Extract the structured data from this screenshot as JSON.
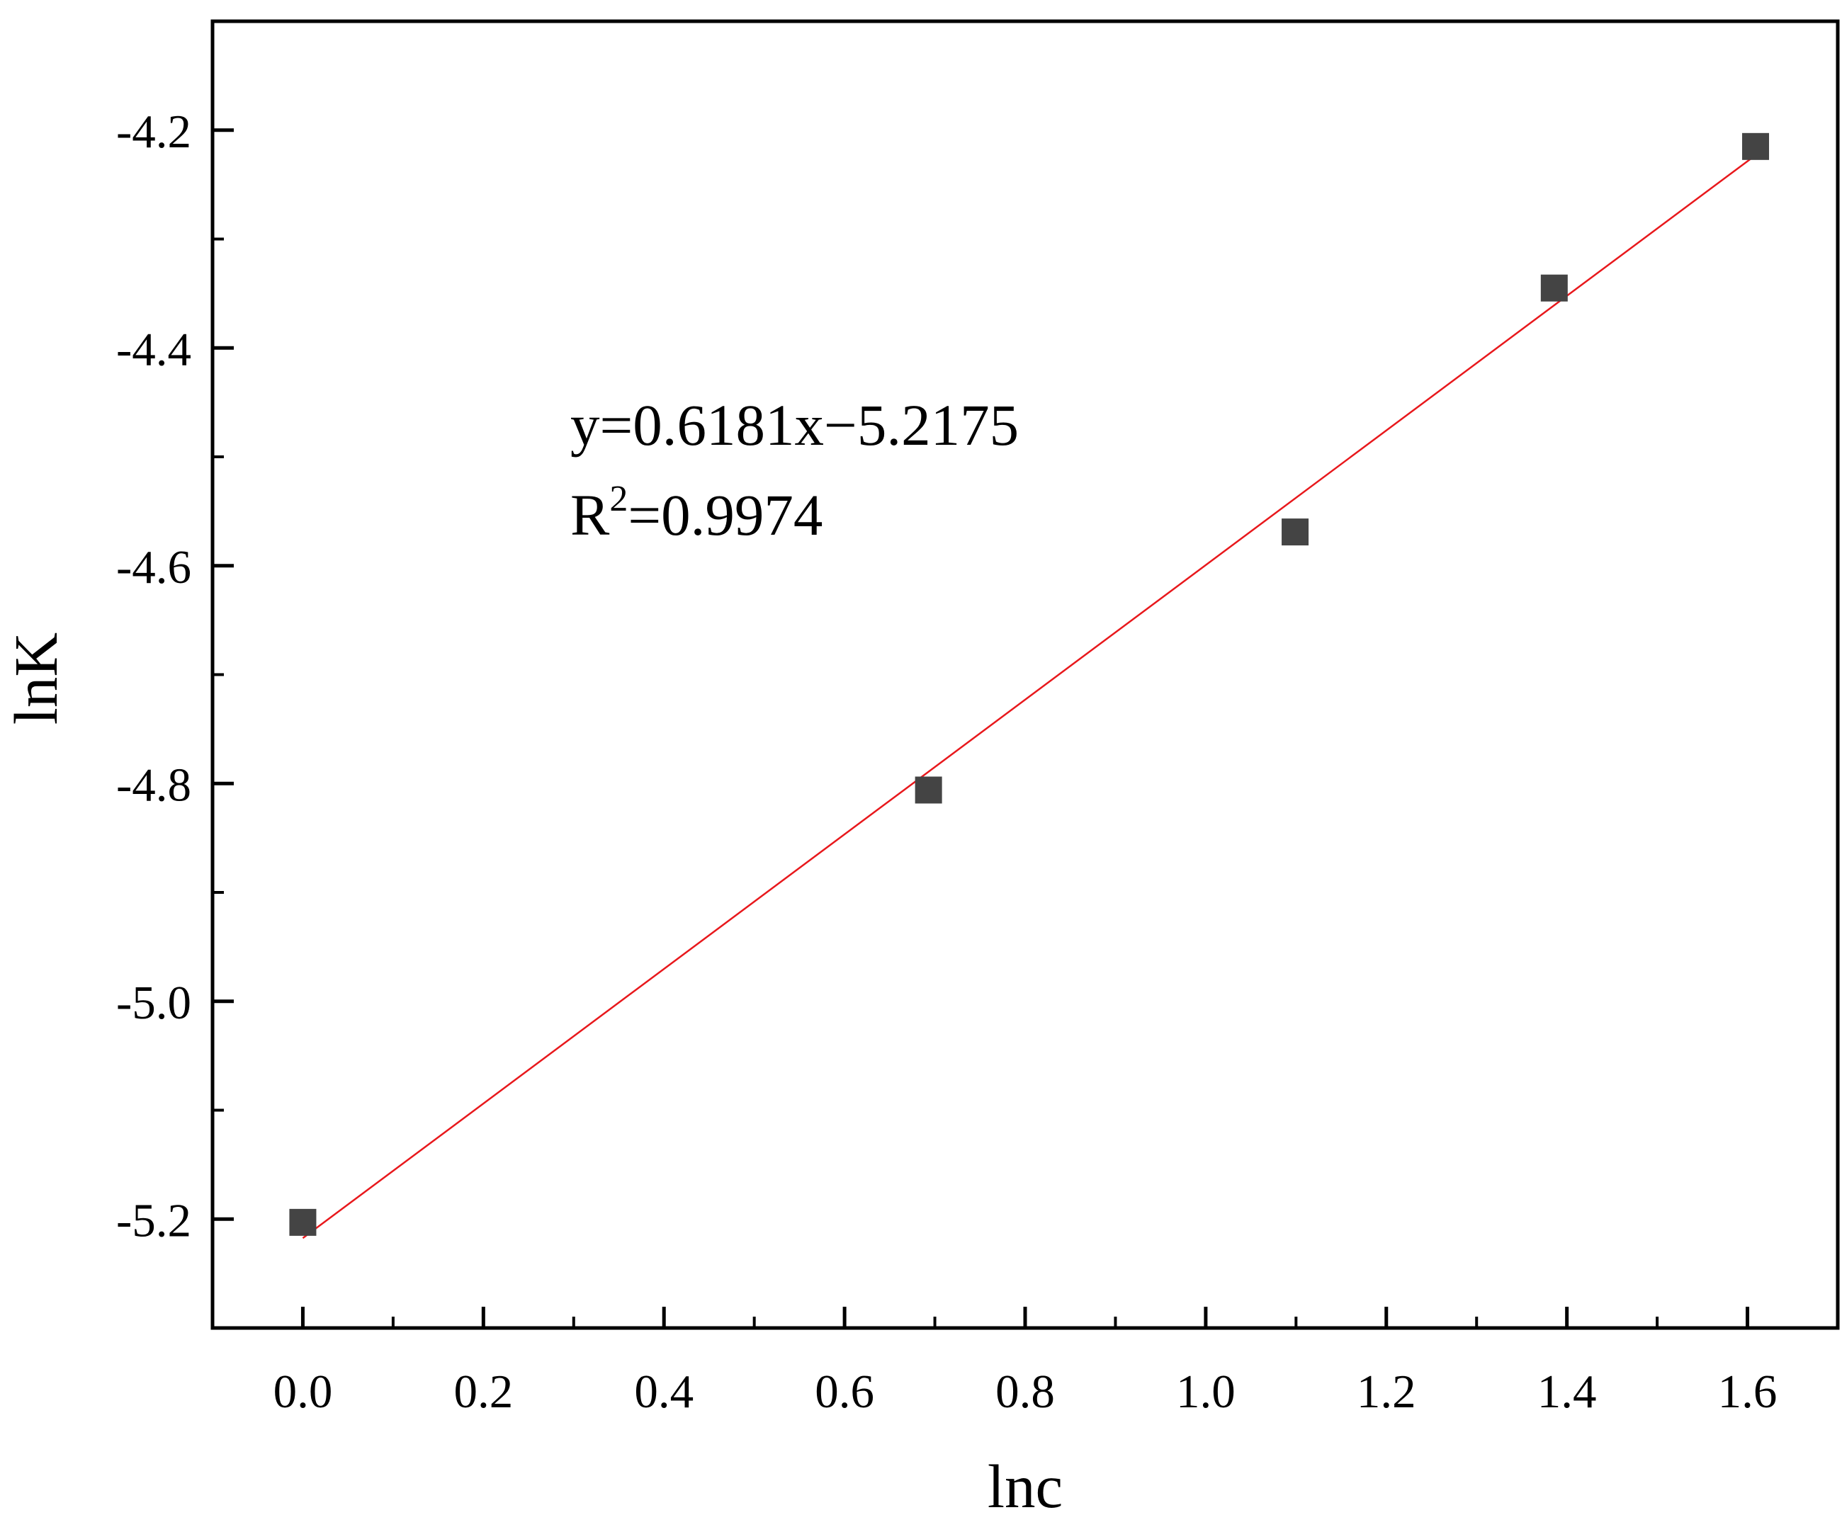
{
  "chart_data": {
    "type": "scatter",
    "title": "",
    "xlabel": "lnc",
    "ylabel": "lnK",
    "xlim": [
      -0.1,
      1.7
    ],
    "ylim": [
      -5.3,
      -4.1
    ],
    "x_major_ticks": [
      0.0,
      0.2,
      0.4,
      0.6,
      0.8,
      1.0,
      1.2,
      1.4,
      1.6
    ],
    "x_tick_labels": [
      "0.0",
      "0.2",
      "0.4",
      "0.6",
      "0.8",
      "1.0",
      "1.2",
      "1.4",
      "1.6"
    ],
    "x_minor_ticks": [
      0.1,
      0.3,
      0.5,
      0.7,
      0.9,
      1.1,
      1.3,
      1.5
    ],
    "y_major_ticks": [
      -5.2,
      -5.0,
      -4.8,
      -4.6,
      -4.4,
      -4.2
    ],
    "y_tick_labels": [
      "-5.2",
      "-5.0",
      "-4.8",
      "-4.6",
      "-4.4",
      "-4.2"
    ],
    "y_minor_ticks": [
      -5.1,
      -4.9,
      -4.7,
      -4.5,
      -4.3
    ],
    "grid": false,
    "legend": "none",
    "series": [
      {
        "x": [
          0.0,
          0.693,
          1.099,
          1.386,
          1.609
        ],
        "y": [
          -5.203,
          -4.806,
          -4.569,
          -4.345,
          -4.215
        ],
        "marker": "square",
        "color": "#444444"
      }
    ],
    "fit": {
      "slope": 0.6181,
      "intercept": -5.2175,
      "x_range": [
        0.0,
        1.609
      ],
      "color": "#e8181c"
    },
    "annotation": {
      "equation": "y=0.6181x−5.2175",
      "r2_prefix": "R",
      "r2_sup": "2",
      "r2_value": "=0.9974"
    }
  }
}
